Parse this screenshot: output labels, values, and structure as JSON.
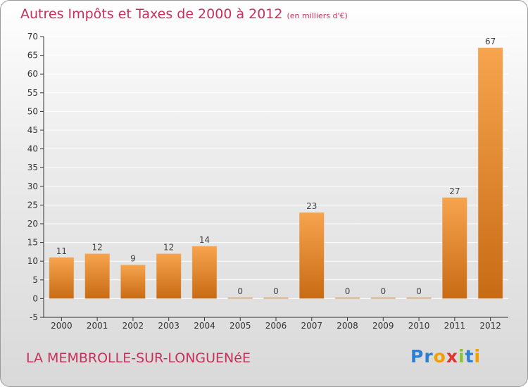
{
  "header": {
    "title": "Autres Impôts et Taxes de 2000 à 2012",
    "subtitle": "(en milliers d'€)"
  },
  "footer": {
    "place": "LA MEMBROLLE-SUR-LONGUENéE",
    "logo": [
      "P",
      "r",
      "o",
      "x",
      "i",
      "t",
      "i"
    ],
    "logo_colors": [
      "#2d7fd1",
      "#2d7fd1",
      "#f0a000",
      "#e0342e",
      "#8ac32d",
      "#2d7fd1",
      "#f0a000"
    ]
  },
  "colors": {
    "title": "#c8305a",
    "bar_top": "#f7a44e",
    "bar_bottom": "#c86b14",
    "axis": "#333333",
    "grid": "#ffffff"
  },
  "chart_data": {
    "type": "bar",
    "title": "Autres Impôts et Taxes de 2000 à 2012",
    "subtitle": "(en milliers d'€)",
    "categories": [
      "2000",
      "2001",
      "2002",
      "2003",
      "2004",
      "2005",
      "2006",
      "2007",
      "2008",
      "2009",
      "2010",
      "2011",
      "2012"
    ],
    "values": [
      11,
      12,
      9,
      12,
      14,
      0,
      0,
      23,
      0,
      0,
      0,
      27,
      67
    ],
    "ylim": [
      -5,
      70
    ],
    "yticks": [
      -5,
      0,
      5,
      10,
      15,
      20,
      25,
      30,
      35,
      40,
      45,
      50,
      55,
      60,
      65,
      70
    ],
    "grid": true,
    "xlabel": "",
    "ylabel": ""
  }
}
